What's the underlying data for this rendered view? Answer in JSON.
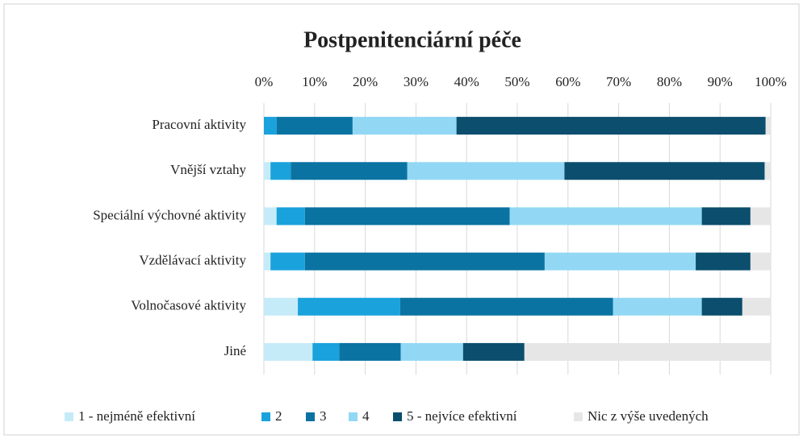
{
  "chart_data": {
    "type": "stacked_bar_horizontal",
    "title": "Postpenitenciární péče",
    "categories": [
      "Pracovní aktivity",
      "Vnější vztahy",
      "Speciální výchovné aktivity",
      "Vzdělávací aktivity",
      "Volnočasové aktivity",
      "Jiné"
    ],
    "series": [
      {
        "name": "1 - nejméně efektivní",
        "color": "#c6ebf8",
        "values": [
          0,
          1.3,
          2.5,
          1.3,
          6.7,
          9.6
        ]
      },
      {
        "name": "2",
        "color": "#1aa2dc",
        "values": [
          2.5,
          4,
          5.6,
          6.8,
          20.2,
          5.3
        ]
      },
      {
        "name": "3",
        "color": "#0a73a2",
        "values": [
          15,
          23,
          40.4,
          47.3,
          42,
          12.1
        ]
      },
      {
        "name": "4",
        "color": "#92d8f5",
        "values": [
          20.5,
          31,
          37.9,
          29.8,
          17.5,
          12.3
        ]
      },
      {
        "name": "5 - nejvíce efektivní",
        "color": "#0b4e6e",
        "values": [
          61,
          39.5,
          9.6,
          10.8,
          8,
          12.1
        ]
      },
      {
        "name": "Nic z výše uvedených",
        "color": "#e6e6e6",
        "values": [
          1,
          1.2,
          4,
          4,
          5.6,
          48.6
        ]
      }
    ],
    "xlim": [
      0,
      100
    ],
    "xticks": [
      {
        "value": 0,
        "label": "0%"
      },
      {
        "value": 10,
        "label": "10%"
      },
      {
        "value": 20,
        "label": "20%"
      },
      {
        "value": 30,
        "label": "30%"
      },
      {
        "value": 40,
        "label": "40%"
      },
      {
        "value": 50,
        "label": "50%"
      },
      {
        "value": 60,
        "label": "60%"
      },
      {
        "value": 70,
        "label": "70%"
      },
      {
        "value": 80,
        "label": "80%"
      },
      {
        "value": 90,
        "label": "90%"
      },
      {
        "value": 100,
        "label": "100%"
      }
    ],
    "grid": true,
    "legend": "bottom"
  }
}
